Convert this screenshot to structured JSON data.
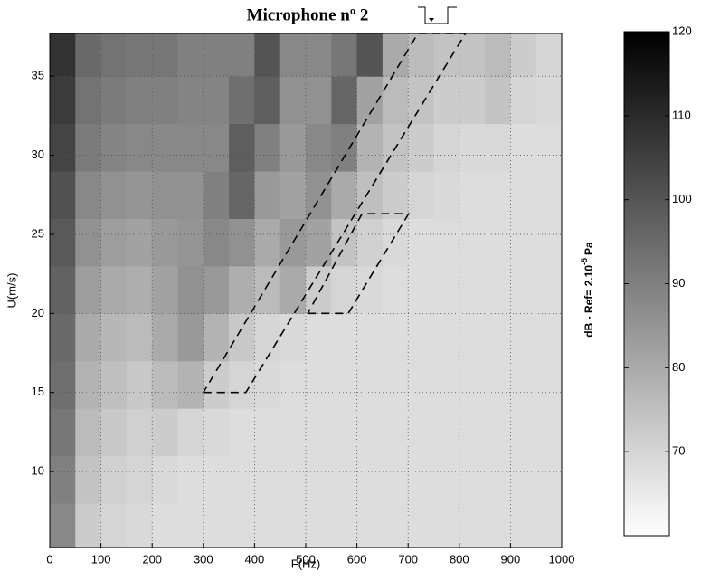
{
  "chart_data": {
    "type": "heatmap",
    "title": "Microphone nº 2",
    "x_label": "F(Hz)",
    "y_label": "U(m/s)",
    "colorbar_label_base": "dB - Ref= 2.10",
    "colorbar_label_exp": "-5",
    "colorbar_label_unit": "Pa",
    "xlim": [
      0,
      1000
    ],
    "xticks": [
      0,
      100,
      200,
      300,
      400,
      500,
      600,
      700,
      800,
      900,
      1000
    ],
    "ylim": [
      5.2,
      37.7
    ],
    "yticks": [
      10,
      15,
      20,
      25,
      30,
      35
    ],
    "clim": [
      60,
      120
    ],
    "cticks": [
      70,
      80,
      90,
      100,
      110,
      120
    ],
    "grid": true,
    "x_edges": [
      0,
      50,
      100,
      150,
      200,
      250,
      300,
      350,
      400,
      450,
      500,
      550,
      600,
      650,
      700,
      750,
      800,
      850,
      900,
      950,
      1000
    ],
    "y_edges": [
      5.2,
      8,
      11,
      14,
      17,
      20,
      23,
      26,
      29,
      32,
      35,
      37.7
    ],
    "z": [
      [
        88,
        72,
        70,
        69,
        68,
        68,
        68,
        68,
        68,
        68,
        68,
        68,
        68,
        68,
        68,
        68,
        68,
        68,
        68,
        68
      ],
      [
        90,
        74,
        71,
        70,
        69,
        68,
        68,
        68,
        68,
        68,
        68,
        68,
        68,
        68,
        68,
        68,
        68,
        68,
        68,
        68
      ],
      [
        92,
        76,
        73,
        71,
        72,
        70,
        69,
        68,
        68,
        68,
        68,
        68,
        68,
        68,
        68,
        68,
        68,
        68,
        68,
        68
      ],
      [
        94,
        78,
        75,
        73,
        76,
        78,
        72,
        70,
        69,
        68,
        68,
        68,
        68,
        68,
        68,
        68,
        68,
        68,
        68,
        68
      ],
      [
        95,
        80,
        77,
        76,
        80,
        84,
        78,
        73,
        70,
        69,
        68,
        68,
        68,
        68,
        68,
        68,
        68,
        68,
        68,
        68
      ],
      [
        97,
        83,
        80,
        79,
        82,
        86,
        84,
        79,
        76,
        80,
        72,
        70,
        69,
        68,
        68,
        68,
        68,
        68,
        68,
        68
      ],
      [
        99,
        86,
        83,
        82,
        84,
        85,
        88,
        86,
        80,
        84,
        82,
        74,
        71,
        69,
        68,
        68,
        68,
        68,
        68,
        68
      ],
      [
        101,
        88,
        86,
        85,
        86,
        86,
        90,
        96,
        84,
        82,
        86,
        80,
        75,
        72,
        70,
        69,
        68,
        68,
        68,
        68
      ],
      [
        104,
        91,
        89,
        88,
        88,
        88,
        88,
        98,
        90,
        84,
        88,
        90,
        78,
        74,
        72,
        70,
        69,
        69,
        68,
        68
      ],
      [
        106,
        93,
        91,
        90,
        90,
        89,
        89,
        94,
        98,
        86,
        86,
        96,
        82,
        76,
        74,
        72,
        72,
        74,
        70,
        69
      ],
      [
        108,
        95,
        93,
        92,
        92,
        90,
        90,
        90,
        100,
        88,
        88,
        92,
        100,
        80,
        76,
        74,
        74,
        76,
        72,
        70
      ]
    ],
    "polygons": [
      {
        "x": [
          300,
          383,
          812,
          719,
          300
        ],
        "y": [
          15,
          15,
          37.7,
          37.7,
          15
        ]
      },
      {
        "x": [
          504,
          583,
          701,
          610,
          504
        ],
        "y": [
          20,
          20,
          26.3,
          26.3,
          20
        ]
      }
    ]
  }
}
